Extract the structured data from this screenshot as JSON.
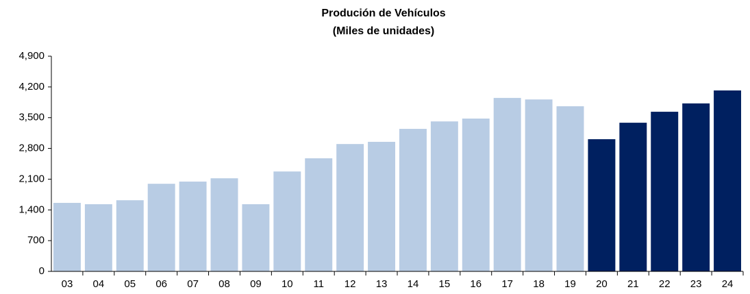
{
  "chart_data": {
    "type": "bar",
    "title": "Produción de Vehículos",
    "subtitle": "(Miles de unidades)",
    "categories": [
      "03",
      "04",
      "05",
      "06",
      "07",
      "08",
      "09",
      "10",
      "11",
      "12",
      "13",
      "14",
      "15",
      "16",
      "17",
      "18",
      "19",
      "20",
      "21",
      "22",
      "23",
      "24"
    ],
    "values": [
      1560,
      1530,
      1620,
      1995,
      2045,
      2120,
      1530,
      2275,
      2575,
      2900,
      2950,
      3245,
      3415,
      3480,
      3950,
      3915,
      3760,
      3010,
      3385,
      3635,
      3825,
      4120
    ],
    "colors": [
      "#b8cce4",
      "#b8cce4",
      "#b8cce4",
      "#b8cce4",
      "#b8cce4",
      "#b8cce4",
      "#b8cce4",
      "#b8cce4",
      "#b8cce4",
      "#b8cce4",
      "#b8cce4",
      "#b8cce4",
      "#b8cce4",
      "#b8cce4",
      "#b8cce4",
      "#b8cce4",
      "#b8cce4",
      "#002060",
      "#002060",
      "#002060",
      "#002060",
      "#002060"
    ],
    "ylim": [
      0,
      4900
    ],
    "yticks": [
      0,
      700,
      {
        "value": 1400,
        "label": "1,400"
      },
      {
        "value": 2100,
        "label": "2,100"
      },
      {
        "value": 2800,
        "label": "2,800"
      },
      {
        "value": 3500,
        "label": "3,500"
      },
      {
        "value": 4200,
        "label": "4,200"
      },
      {
        "value": 4900,
        "label": "4,900"
      }
    ],
    "grid": false
  }
}
